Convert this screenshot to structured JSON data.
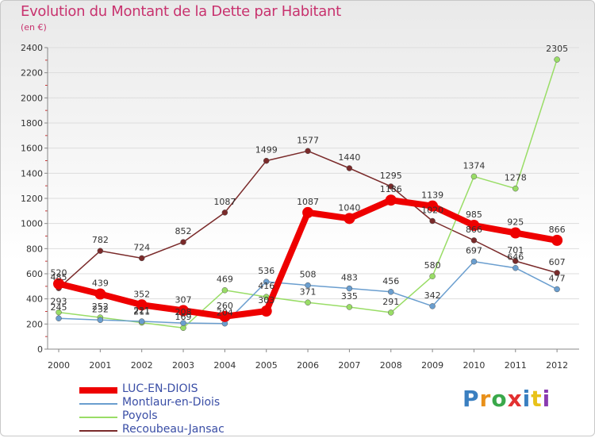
{
  "chart_data": {
    "type": "line",
    "title": "Evolution du Montant de la Dette par Habitant",
    "subtitle": "(en €)",
    "xlabel": "",
    "ylabel": "",
    "categories": [
      "2000",
      "2001",
      "2002",
      "2003",
      "2004",
      "2005",
      "2006",
      "2007",
      "2008",
      "2009",
      "2010",
      "2011",
      "2012"
    ],
    "ylim": [
      0,
      2400
    ],
    "yticks": [
      0,
      200,
      400,
      600,
      800,
      1000,
      1200,
      1400,
      1600,
      1800,
      2000,
      2200,
      2400
    ],
    "grid": "horizontal",
    "legend_position": "bottom-left",
    "series": [
      {
        "name": "LUC-EN-DIOIS",
        "color": "#ee0000",
        "values": [
          520,
          439,
          352,
          307,
          260,
          303,
          1087,
          1040,
          1186,
          1139,
          985,
          925,
          866
        ]
      },
      {
        "name": "Montlaur-en-Diois",
        "color": "#6a9ecf",
        "values": [
          245,
          232,
          221,
          208,
          204,
          536,
          508,
          483,
          456,
          342,
          697,
          646,
          477
        ]
      },
      {
        "name": "Poyols",
        "color": "#99dd66",
        "values": [
          293,
          252,
          211,
          169,
          469,
          416,
          371,
          335,
          291,
          580,
          1374,
          1278,
          2305
        ]
      },
      {
        "name": "Recoubeau-Jansac",
        "color": "#7a2a2a",
        "values": [
          485,
          782,
          724,
          852,
          1087,
          1499,
          1577,
          1440,
          1295,
          1020,
          866,
          701,
          607
        ]
      }
    ]
  },
  "logo": {
    "text": "Proxiti"
  }
}
